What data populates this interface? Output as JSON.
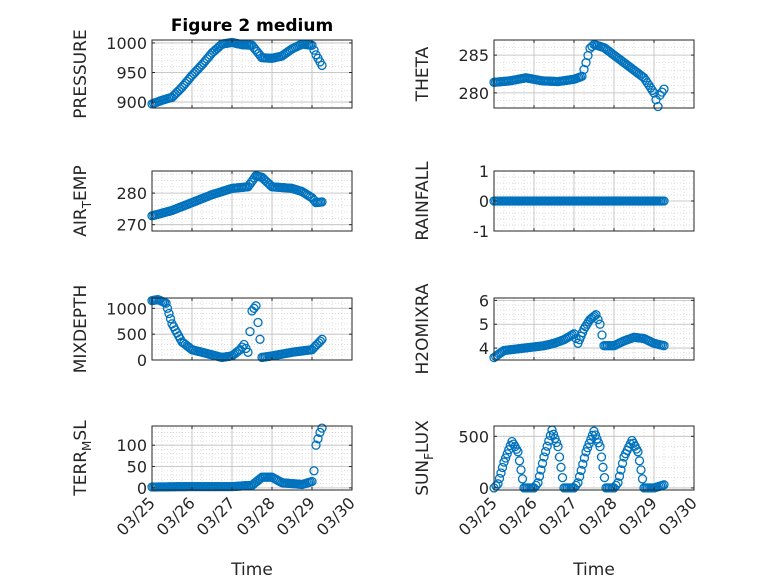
{
  "figure": {
    "title": "Figure 2 medium",
    "x_axis_label": "Time",
    "x_tick_labels": [
      "03/25",
      "03/26",
      "03/27",
      "03/28",
      "03/29",
      "03/30"
    ]
  },
  "colors": {
    "marker": "#0072BD",
    "axes": "#262626",
    "grid": "#bdbdbd",
    "minor_grid": "#d0d0d0",
    "text": "#262626"
  },
  "chart_data": [
    {
      "type": "scatter",
      "panel": "top-left",
      "title": "Figure 2 medium",
      "ylabel": "PRESSURE",
      "xlim": [
        0,
        5
      ],
      "ylim": [
        890,
        1005
      ],
      "yticks": [
        900,
        950,
        1000
      ],
      "ytick_labels": [
        "900",
        "950",
        "1000"
      ],
      "grid": "on",
      "curve": [
        [
          0,
          897
        ],
        [
          0.25,
          903
        ],
        [
          0.5,
          908
        ],
        [
          0.75,
          925
        ],
        [
          1.0,
          945
        ],
        [
          1.25,
          963
        ],
        [
          1.5,
          983
        ],
        [
          1.75,
          998
        ],
        [
          2.0,
          1001
        ],
        [
          2.25,
          997
        ],
        [
          2.5,
          996
        ],
        [
          2.75,
          975
        ],
        [
          3.0,
          974
        ],
        [
          3.25,
          978
        ],
        [
          3.5,
          990
        ],
        [
          3.75,
          998
        ],
        [
          4.0,
          996
        ],
        [
          4.1,
          980
        ],
        [
          4.2,
          968
        ],
        [
          4.25,
          962
        ]
      ]
    },
    {
      "type": "scatter",
      "panel": "top-right",
      "ylabel": "THETA",
      "xlim": [
        0,
        5
      ],
      "ylim": [
        278,
        287
      ],
      "yticks": [
        280,
        285
      ],
      "ytick_labels": [
        "280",
        "285"
      ],
      "grid": "on",
      "curve": [
        [
          0,
          281.4
        ],
        [
          0.4,
          281.6
        ],
        [
          0.8,
          282
        ],
        [
          1.2,
          281.6
        ],
        [
          1.6,
          281.5
        ],
        [
          2.0,
          281.8
        ],
        [
          2.2,
          282.2
        ],
        [
          2.3,
          284
        ],
        [
          2.4,
          285.9
        ],
        [
          2.5,
          286.4
        ],
        [
          2.75,
          286
        ],
        [
          3.0,
          285
        ],
        [
          3.25,
          284
        ],
        [
          3.5,
          283
        ],
        [
          3.75,
          282
        ],
        [
          4.0,
          280
        ],
        [
          4.1,
          278.2
        ],
        [
          4.15,
          279.7
        ],
        [
          4.25,
          280.5
        ]
      ]
    },
    {
      "type": "scatter",
      "panel": "row2-left",
      "ylabel": "AIR_TEMP",
      "xlim": [
        0,
        5
      ],
      "ylim": [
        268,
        287
      ],
      "yticks": [
        270,
        280
      ],
      "ytick_labels": [
        "270",
        "280"
      ],
      "grid": "on",
      "curve": [
        [
          0,
          272.8
        ],
        [
          0.5,
          274.5
        ],
        [
          1.0,
          277
        ],
        [
          1.5,
          279.5
        ],
        [
          2.0,
          281.5
        ],
        [
          2.4,
          282
        ],
        [
          2.6,
          285.5
        ],
        [
          2.75,
          285
        ],
        [
          3.0,
          282
        ],
        [
          3.5,
          281.5
        ],
        [
          3.75,
          280.5
        ],
        [
          4.0,
          278.5
        ],
        [
          4.1,
          277
        ],
        [
          4.25,
          277.2
        ]
      ]
    },
    {
      "type": "scatter",
      "panel": "row2-right",
      "ylabel": "RAINFALL",
      "xlim": [
        0,
        5
      ],
      "ylim": [
        -1,
        1
      ],
      "yticks": [
        -1,
        0,
        1
      ],
      "ytick_labels": [
        "-1",
        "0",
        "1"
      ],
      "grid": "on",
      "curve": [
        [
          0,
          0
        ],
        [
          4.25,
          0
        ]
      ]
    },
    {
      "type": "scatter",
      "panel": "row3-left",
      "ylabel": "MIXDEPTH",
      "xlim": [
        0,
        5
      ],
      "ylim": [
        0,
        1200
      ],
      "yticks": [
        0,
        500,
        1000
      ],
      "ytick_labels": [
        "0",
        "500",
        "1000"
      ],
      "grid": "on",
      "curve": [
        [
          0,
          1150
        ],
        [
          0.15,
          1170
        ],
        [
          0.35,
          1100
        ],
        [
          0.5,
          700
        ],
        [
          0.75,
          350
        ],
        [
          1.0,
          200
        ],
        [
          1.25,
          150
        ],
        [
          1.5,
          100
        ],
        [
          1.75,
          50
        ],
        [
          2.0,
          80
        ],
        [
          2.2,
          200
        ],
        [
          2.3,
          300
        ],
        [
          2.4,
          150
        ],
        [
          2.5,
          950
        ],
        [
          2.6,
          1050
        ],
        [
          2.7,
          400
        ],
        [
          2.75,
          50
        ],
        [
          3.0,
          80
        ],
        [
          3.5,
          150
        ],
        [
          4.0,
          200
        ],
        [
          4.25,
          400
        ]
      ]
    },
    {
      "type": "scatter",
      "panel": "row3-right",
      "ylabel": "H2OMIXRA",
      "xlim": [
        0,
        5
      ],
      "ylim": [
        3.5,
        6.1
      ],
      "yticks": [
        4,
        5,
        6
      ],
      "ytick_labels": [
        "4",
        "5",
        "6"
      ],
      "grid": "on",
      "curve": [
        [
          0,
          3.6
        ],
        [
          0.25,
          3.9
        ],
        [
          0.5,
          3.95
        ],
        [
          0.75,
          4.0
        ],
        [
          1.0,
          4.05
        ],
        [
          1.25,
          4.1
        ],
        [
          1.5,
          4.2
        ],
        [
          1.75,
          4.35
        ],
        [
          2.0,
          4.6
        ],
        [
          2.1,
          4.2
        ],
        [
          2.25,
          4.8
        ],
        [
          2.4,
          5.2
        ],
        [
          2.55,
          5.4
        ],
        [
          2.65,
          5.0
        ],
        [
          2.75,
          4.1
        ],
        [
          3.0,
          4.1
        ],
        [
          3.25,
          4.3
        ],
        [
          3.5,
          4.45
        ],
        [
          3.75,
          4.4
        ],
        [
          4.0,
          4.2
        ],
        [
          4.25,
          4.1
        ]
      ]
    },
    {
      "type": "scatter",
      "panel": "bottom-left",
      "ylabel": "TERR_MSL",
      "xlim": [
        0,
        5
      ],
      "ylim": [
        -5,
        145
      ],
      "yticks": [
        0,
        50,
        100
      ],
      "ytick_labels": [
        "0",
        "50",
        "100"
      ],
      "grid": "on",
      "curve": [
        [
          0,
          2
        ],
        [
          1.0,
          3
        ],
        [
          2.0,
          3
        ],
        [
          2.5,
          6
        ],
        [
          2.75,
          25
        ],
        [
          3.0,
          25
        ],
        [
          3.25,
          12
        ],
        [
          3.5,
          10
        ],
        [
          3.75,
          8
        ],
        [
          4.0,
          15
        ],
        [
          4.05,
          40
        ],
        [
          4.1,
          100
        ],
        [
          4.2,
          130
        ],
        [
          4.25,
          140
        ]
      ]
    },
    {
      "type": "scatter",
      "panel": "bottom-right",
      "ylabel": "SUN_FLUX",
      "xlim": [
        0,
        5
      ],
      "ylim": [
        -20,
        600
      ],
      "yticks": [
        0,
        500
      ],
      "ytick_labels": [
        "0",
        "500"
      ],
      "grid": "on",
      "curve": [
        [
          0,
          0
        ],
        [
          0.1,
          40
        ],
        [
          0.25,
          250
        ],
        [
          0.45,
          450
        ],
        [
          0.6,
          350
        ],
        [
          0.75,
          0
        ],
        [
          1.0,
          0
        ],
        [
          1.1,
          50
        ],
        [
          1.25,
          300
        ],
        [
          1.45,
          560
        ],
        [
          1.6,
          400
        ],
        [
          1.75,
          0
        ],
        [
          2.0,
          0
        ],
        [
          2.1,
          50
        ],
        [
          2.3,
          350
        ],
        [
          2.5,
          550
        ],
        [
          2.65,
          400
        ],
        [
          2.8,
          0
        ],
        [
          3.0,
          0
        ],
        [
          3.1,
          50
        ],
        [
          3.25,
          300
        ],
        [
          3.45,
          460
        ],
        [
          3.6,
          350
        ],
        [
          3.75,
          0
        ],
        [
          4.0,
          0
        ],
        [
          4.25,
          30
        ]
      ]
    }
  ]
}
